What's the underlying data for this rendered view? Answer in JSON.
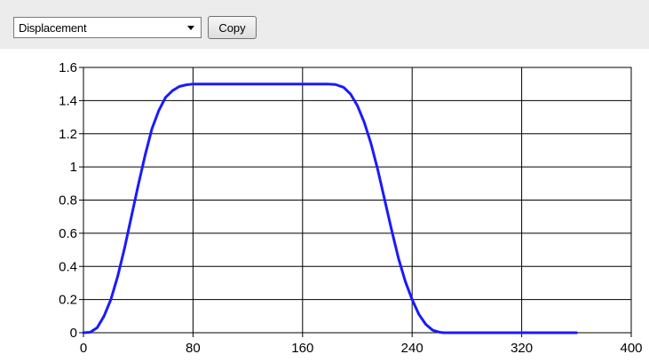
{
  "toolbar": {
    "dropdown_value": "Displacement",
    "copy_label": "Copy"
  },
  "colors": {
    "curve": "#1a1aff",
    "grid": "#000000",
    "toolbar_bg": "#ececec"
  },
  "chart_data": {
    "type": "line",
    "title": "",
    "xlabel": "",
    "ylabel": "",
    "xlim": [
      0,
      400
    ],
    "ylim": [
      0,
      1.6
    ],
    "x_ticks": [
      0,
      80,
      160,
      240,
      320,
      400
    ],
    "x_tick_labels": [
      "0",
      "80",
      "160",
      "240",
      "320",
      "400"
    ],
    "y_ticks": [
      0,
      0.2,
      0.4,
      0.6,
      0.8,
      1,
      1.2,
      1.4,
      1.6
    ],
    "y_tick_labels": [
      "0",
      "0.2",
      "0.4",
      "0.6",
      "0.8",
      "1",
      "1.2",
      "1.4",
      "1.6"
    ],
    "grid": true,
    "legend": "none",
    "series": [
      {
        "x": [
          0,
          5,
          10,
          15,
          20,
          25,
          30,
          35,
          40,
          45,
          50,
          55,
          60,
          65,
          70,
          75,
          80,
          85,
          90,
          95,
          100,
          110,
          120,
          130,
          140,
          150,
          160,
          170,
          178,
          184,
          190,
          195,
          200,
          205,
          210,
          215,
          220,
          225,
          230,
          235,
          240,
          245,
          250,
          255,
          260,
          263,
          270,
          280,
          300,
          320,
          340,
          360
        ],
        "y": [
          0,
          0.003,
          0.03,
          0.1,
          0.2,
          0.34,
          0.51,
          0.7,
          0.89,
          1.07,
          1.23,
          1.34,
          1.42,
          1.46,
          1.485,
          1.495,
          1.5,
          1.5,
          1.5,
          1.5,
          1.5,
          1.5,
          1.5,
          1.5,
          1.5,
          1.5,
          1.5,
          1.5,
          1.5,
          1.497,
          1.48,
          1.44,
          1.37,
          1.27,
          1.14,
          0.98,
          0.8,
          0.62,
          0.45,
          0.31,
          0.2,
          0.11,
          0.05,
          0.015,
          0.003,
          0,
          0,
          0,
          0,
          0,
          0,
          0
        ]
      }
    ]
  }
}
